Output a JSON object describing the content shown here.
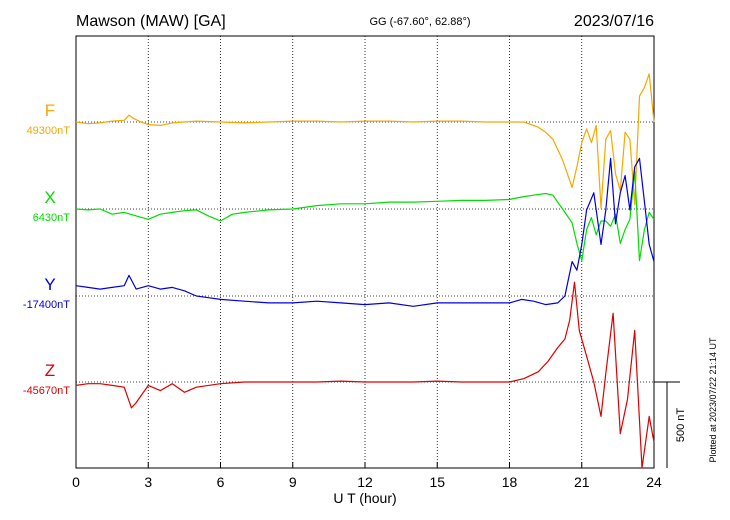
{
  "header": {
    "station": "Mawson (MAW)  [GA]",
    "coords": "GG (-67.60°,  62.88°)",
    "date": "2023/07/16"
  },
  "footer": {
    "plotted": "Plotted at 2023/07/22 21:14 UT"
  },
  "chart_data": {
    "type": "line",
    "xlabel": "U T (hour)",
    "xlim": [
      0,
      24
    ],
    "xticks": [
      0,
      3,
      6,
      9,
      12,
      15,
      18,
      21,
      24
    ],
    "x_tick_labels": [
      "0",
      "3",
      "6",
      "9",
      "12",
      "15",
      "18",
      "21",
      "24"
    ],
    "grid": true,
    "scale_bar": {
      "label": "500 nT",
      "value_nT": 500
    },
    "series": [
      {
        "name": "F",
        "baseline_label": "49300nT",
        "baseline_nT": 49300,
        "color": "#f5a800",
        "x": [
          0,
          0.5,
          1,
          1.5,
          2,
          2.2,
          2.4,
          2.7,
          3,
          3.5,
          4,
          5,
          6,
          7,
          8,
          9,
          10,
          11,
          12,
          13,
          14,
          15,
          16,
          17,
          18,
          18.6,
          19.2,
          19.5,
          19.8,
          20,
          20.2,
          20.4,
          20.6,
          20.8,
          21,
          21.2,
          21.4,
          21.6,
          21.8,
          22,
          22.2,
          22.4,
          22.6,
          22.8,
          23,
          23.2,
          23.4,
          23.6,
          23.8,
          24
        ],
        "y": [
          0,
          -10,
          -5,
          5,
          10,
          40,
          20,
          0,
          -15,
          -20,
          -5,
          5,
          0,
          -5,
          0,
          5,
          5,
          0,
          5,
          5,
          0,
          5,
          5,
          0,
          0,
          0,
          -30,
          -60,
          -100,
          -160,
          -220,
          -300,
          -380,
          -260,
          -120,
          -40,
          -120,
          -20,
          -500,
          -100,
          -50,
          -300,
          -400,
          -60,
          -100,
          -480,
          150,
          200,
          280,
          0
        ],
        "note": "deviation in nT from baseline"
      },
      {
        "name": "X",
        "baseline_label": "6430nT",
        "baseline_nT": 6430,
        "color": "#00dd00",
        "x": [
          0,
          0.5,
          1,
          1.5,
          2,
          2.5,
          3,
          3.5,
          4,
          4.5,
          5,
          5.5,
          6,
          6.5,
          7,
          8,
          9,
          10,
          11,
          12,
          13,
          14,
          15,
          16,
          17,
          18,
          18.5,
          19,
          19.5,
          19.8,
          20,
          20.3,
          20.6,
          20.8,
          21,
          21.2,
          21.4,
          21.6,
          21.8,
          22,
          22.2,
          22.4,
          22.6,
          22.8,
          23,
          23.2,
          23.4,
          23.6,
          23.8,
          24
        ],
        "y": [
          0,
          -5,
          0,
          -30,
          -20,
          -40,
          -60,
          -30,
          -20,
          -10,
          -5,
          -40,
          -70,
          -30,
          -20,
          -5,
          0,
          20,
          30,
          30,
          40,
          40,
          45,
          50,
          50,
          55,
          70,
          80,
          90,
          80,
          40,
          -20,
          -80,
          -200,
          -300,
          -120,
          -50,
          -150,
          -70,
          -70,
          -100,
          -30,
          -200,
          -120,
          -60,
          220,
          -300,
          -120,
          -20,
          -60
        ]
      },
      {
        "name": "Y",
        "baseline_label": "-17400nT",
        "baseline_nT": -17400,
        "color": "#0000dd",
        "x": [
          0,
          0.5,
          1,
          1.5,
          2,
          2.2,
          2.5,
          3,
          3.5,
          4,
          4.5,
          5,
          5.5,
          6,
          7,
          8,
          9,
          10,
          11,
          12,
          13,
          14,
          15,
          16,
          17,
          18,
          18.5,
          19,
          19.5,
          20,
          20.3,
          20.6,
          20.8,
          21,
          21.2,
          21.5,
          21.8,
          22,
          22.2,
          22.4,
          22.6,
          22.8,
          23,
          23.2,
          23.4,
          23.6,
          23.8,
          24
        ],
        "y": [
          60,
          50,
          40,
          50,
          60,
          120,
          40,
          60,
          40,
          50,
          30,
          0,
          -10,
          -20,
          -30,
          -40,
          -40,
          -30,
          -40,
          -50,
          -40,
          -60,
          -40,
          -40,
          -40,
          -40,
          -20,
          -30,
          -50,
          -40,
          0,
          200,
          150,
          300,
          500,
          600,
          300,
          500,
          800,
          420,
          600,
          700,
          500,
          750,
          800,
          550,
          300,
          200
        ]
      },
      {
        "name": "Z",
        "baseline_label": "-45670nT",
        "baseline_nT": -45670,
        "color": "#dd0000",
        "x": [
          0,
          0.5,
          1,
          1.5,
          2,
          2.3,
          2.5,
          3,
          3.5,
          4,
          4.5,
          5,
          6,
          7,
          8,
          9,
          10,
          11,
          12,
          13,
          14,
          15,
          16,
          17,
          18,
          18.6,
          19.2,
          19.6,
          20,
          20.3,
          20.5,
          20.7,
          20.9,
          21.2,
          21.5,
          21.8,
          22,
          22.3,
          22.6,
          22.9,
          23.2,
          23.5,
          23.8,
          24
        ],
        "y": [
          -20,
          -10,
          -10,
          -20,
          -30,
          -150,
          -120,
          -20,
          -50,
          -10,
          -60,
          -30,
          -10,
          0,
          0,
          0,
          0,
          5,
          0,
          0,
          0,
          5,
          0,
          0,
          0,
          20,
          60,
          120,
          200,
          250,
          360,
          580,
          300,
          150,
          0,
          -200,
          50,
          400,
          -300,
          -100,
          300,
          -500,
          -200,
          -350
        ]
      }
    ]
  }
}
